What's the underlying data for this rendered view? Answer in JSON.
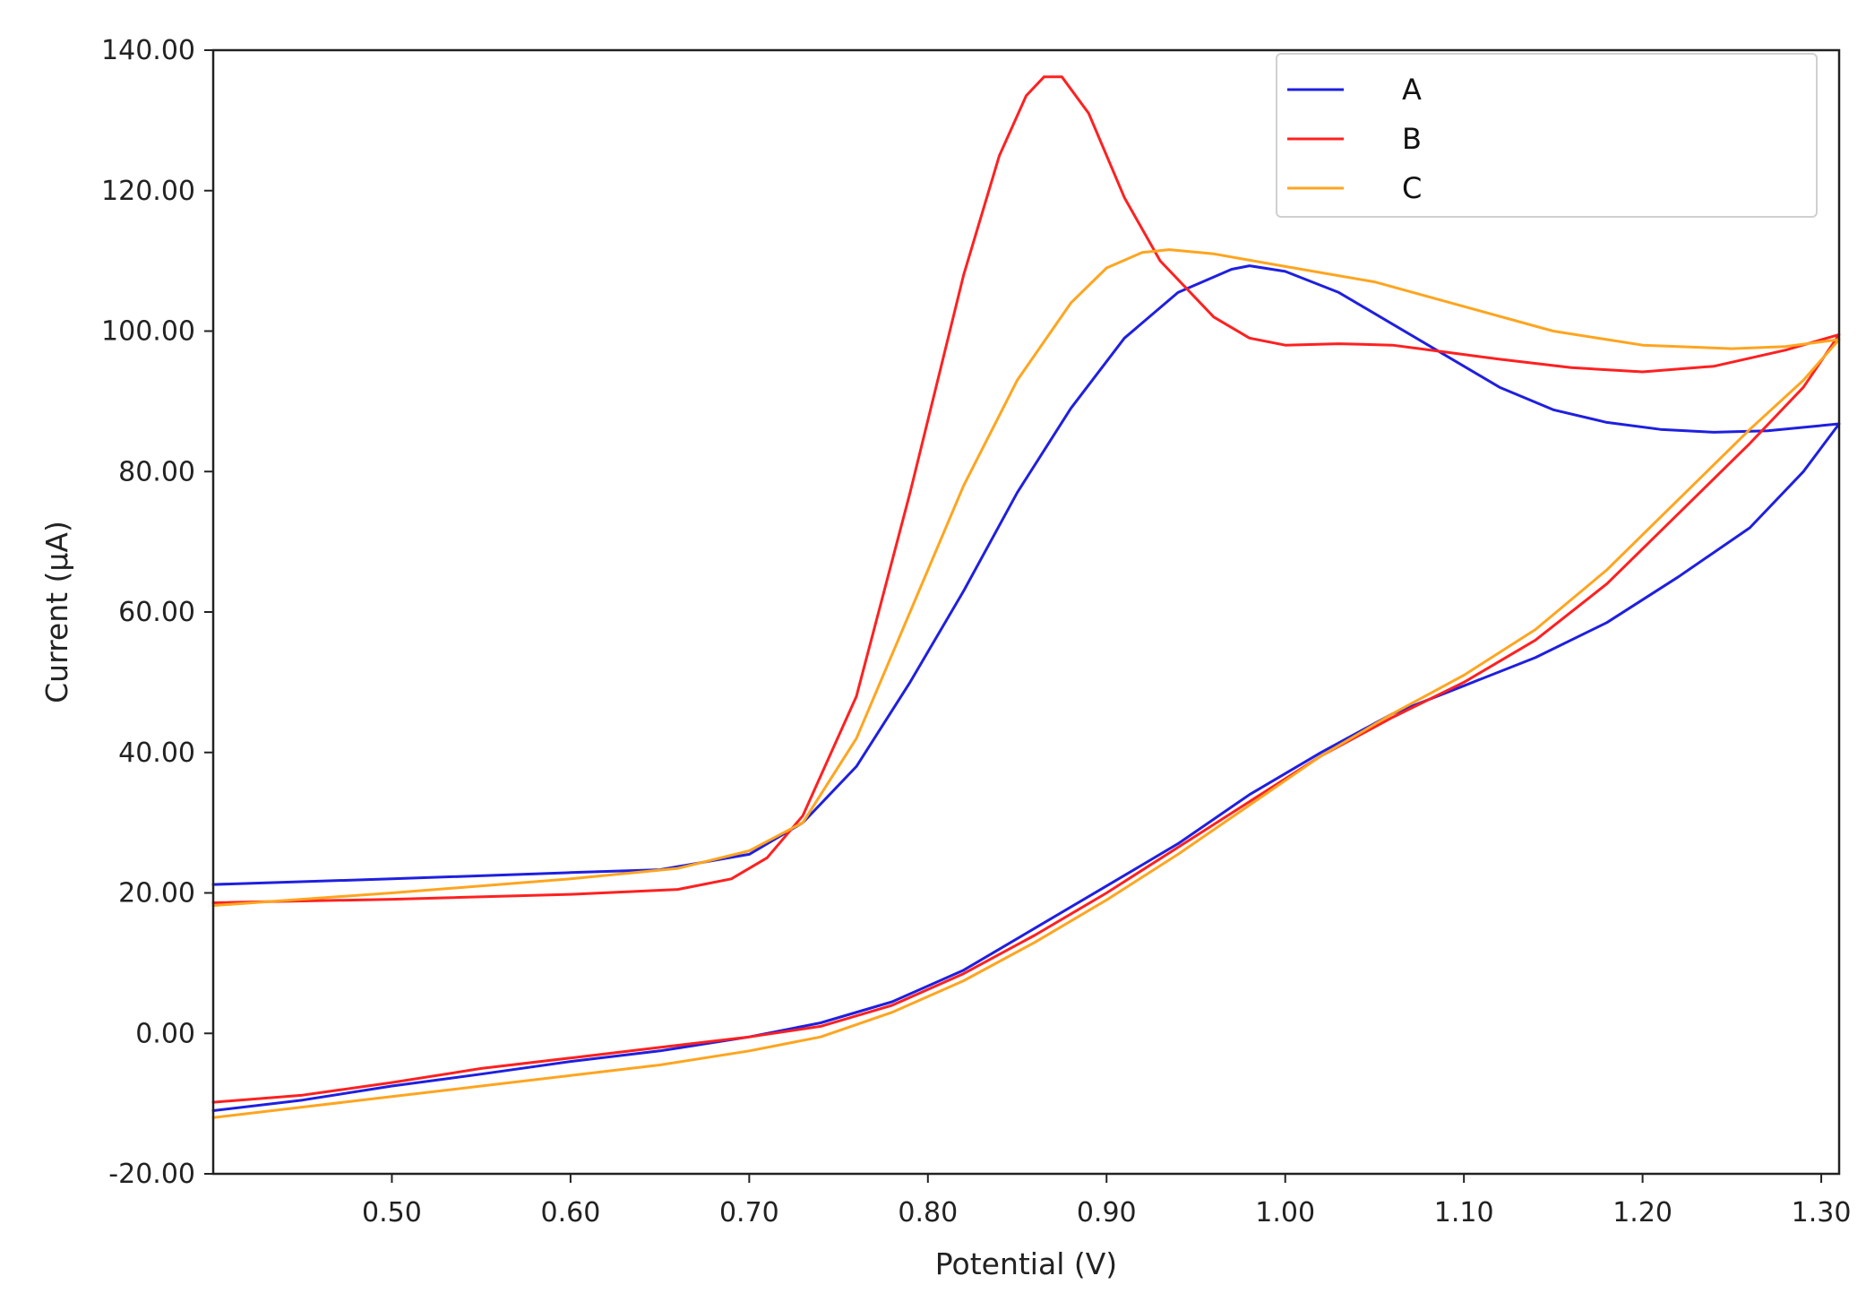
{
  "chart_data": {
    "type": "line",
    "title": "",
    "xlabel": "Potential (V)",
    "ylabel": "Current (µA)",
    "xlim": [
      0.4,
      1.31
    ],
    "ylim": [
      -20,
      140
    ],
    "xticks": [
      0.5,
      0.6,
      0.7,
      0.8,
      0.9,
      1.0,
      1.1,
      1.2,
      1.3
    ],
    "xtick_labels": [
      "0.50",
      "0.60",
      "0.70",
      "0.80",
      "0.90",
      "1.00",
      "1.10",
      "1.20",
      "1.30"
    ],
    "yticks": [
      -20,
      0,
      20,
      40,
      60,
      80,
      100,
      120,
      140
    ],
    "ytick_labels": [
      "-20.00",
      "0.00",
      "20.00",
      "40.00",
      "60.00",
      "80.00",
      "100.00",
      "120.00",
      "140.00"
    ],
    "grid": false,
    "legend_position": "top-right",
    "series": [
      {
        "name": "A",
        "color": "#1f1fe0",
        "points": [
          [
            0.4,
            21.2
          ],
          [
            0.5,
            22.0
          ],
          [
            0.6,
            22.9
          ],
          [
            0.65,
            23.3
          ],
          [
            0.7,
            25.5
          ],
          [
            0.73,
            30.0
          ],
          [
            0.76,
            38.0
          ],
          [
            0.79,
            50.0
          ],
          [
            0.82,
            63.0
          ],
          [
            0.85,
            77.0
          ],
          [
            0.88,
            89.0
          ],
          [
            0.91,
            99.0
          ],
          [
            0.94,
            105.5
          ],
          [
            0.97,
            108.8
          ],
          [
            0.98,
            109.3
          ],
          [
            1.0,
            108.5
          ],
          [
            1.03,
            105.5
          ],
          [
            1.06,
            101.0
          ],
          [
            1.09,
            96.5
          ],
          [
            1.12,
            92.0
          ],
          [
            1.15,
            88.8
          ],
          [
            1.18,
            87.0
          ],
          [
            1.21,
            86.0
          ],
          [
            1.24,
            85.6
          ],
          [
            1.27,
            85.8
          ],
          [
            1.31,
            86.8
          ],
          [
            1.29,
            80.0
          ],
          [
            1.26,
            72.0
          ],
          [
            1.22,
            65.0
          ],
          [
            1.18,
            58.5
          ],
          [
            1.14,
            53.5
          ],
          [
            1.1,
            49.5
          ],
          [
            1.06,
            45.5
          ],
          [
            1.02,
            40.0
          ],
          [
            0.98,
            34.0
          ],
          [
            0.94,
            27.0
          ],
          [
            0.9,
            21.0
          ],
          [
            0.86,
            15.0
          ],
          [
            0.82,
            9.0
          ],
          [
            0.78,
            4.5
          ],
          [
            0.74,
            1.5
          ],
          [
            0.7,
            -0.5
          ],
          [
            0.65,
            -2.5
          ],
          [
            0.6,
            -4.0
          ],
          [
            0.55,
            -5.8
          ],
          [
            0.5,
            -7.5
          ],
          [
            0.45,
            -9.5
          ],
          [
            0.4,
            -11.0
          ]
        ]
      },
      {
        "name": "B",
        "color": "#ff2020",
        "points": [
          [
            0.4,
            18.6
          ],
          [
            0.5,
            19.1
          ],
          [
            0.6,
            19.8
          ],
          [
            0.66,
            20.5
          ],
          [
            0.69,
            22.0
          ],
          [
            0.71,
            25.0
          ],
          [
            0.73,
            31.0
          ],
          [
            0.76,
            48.0
          ],
          [
            0.79,
            77.0
          ],
          [
            0.82,
            108.0
          ],
          [
            0.84,
            125.0
          ],
          [
            0.855,
            133.5
          ],
          [
            0.865,
            136.2
          ],
          [
            0.875,
            136.2
          ],
          [
            0.89,
            131.0
          ],
          [
            0.91,
            119.0
          ],
          [
            0.93,
            110.0
          ],
          [
            0.96,
            102.0
          ],
          [
            0.98,
            99.0
          ],
          [
            1.0,
            98.0
          ],
          [
            1.03,
            98.2
          ],
          [
            1.06,
            98.0
          ],
          [
            1.09,
            97.0
          ],
          [
            1.12,
            96.0
          ],
          [
            1.16,
            94.8
          ],
          [
            1.2,
            94.2
          ],
          [
            1.24,
            95.0
          ],
          [
            1.28,
            97.3
          ],
          [
            1.31,
            99.5
          ],
          [
            1.29,
            92.0
          ],
          [
            1.26,
            84.0
          ],
          [
            1.22,
            74.0
          ],
          [
            1.18,
            64.0
          ],
          [
            1.14,
            56.0
          ],
          [
            1.1,
            50.0
          ],
          [
            1.06,
            45.0
          ],
          [
            1.02,
            39.5
          ],
          [
            0.98,
            33.0
          ],
          [
            0.94,
            26.5
          ],
          [
            0.9,
            20.0
          ],
          [
            0.86,
            14.0
          ],
          [
            0.82,
            8.5
          ],
          [
            0.78,
            4.0
          ],
          [
            0.74,
            1.0
          ],
          [
            0.7,
            -0.5
          ],
          [
            0.65,
            -2.0
          ],
          [
            0.6,
            -3.5
          ],
          [
            0.55,
            -5.0
          ],
          [
            0.5,
            -7.0
          ],
          [
            0.45,
            -8.8
          ],
          [
            0.4,
            -9.8
          ]
        ]
      },
      {
        "name": "C",
        "color": "#ffa51f",
        "points": [
          [
            0.4,
            18.2
          ],
          [
            0.5,
            20.0
          ],
          [
            0.6,
            22.0
          ],
          [
            0.66,
            23.5
          ],
          [
            0.7,
            26.0
          ],
          [
            0.73,
            30.0
          ],
          [
            0.76,
            42.0
          ],
          [
            0.79,
            60.0
          ],
          [
            0.82,
            78.0
          ],
          [
            0.85,
            93.0
          ],
          [
            0.88,
            104.0
          ],
          [
            0.9,
            109.0
          ],
          [
            0.92,
            111.2
          ],
          [
            0.935,
            111.6
          ],
          [
            0.96,
            111.0
          ],
          [
            1.0,
            109.2
          ],
          [
            1.05,
            107.0
          ],
          [
            1.1,
            103.5
          ],
          [
            1.15,
            100.0
          ],
          [
            1.2,
            98.0
          ],
          [
            1.25,
            97.5
          ],
          [
            1.28,
            97.8
          ],
          [
            1.31,
            98.8
          ],
          [
            1.29,
            93.0
          ],
          [
            1.26,
            86.0
          ],
          [
            1.22,
            76.0
          ],
          [
            1.18,
            66.0
          ],
          [
            1.14,
            57.5
          ],
          [
            1.1,
            51.0
          ],
          [
            1.06,
            45.5
          ],
          [
            1.02,
            39.5
          ],
          [
            0.98,
            32.5
          ],
          [
            0.94,
            25.5
          ],
          [
            0.9,
            19.0
          ],
          [
            0.86,
            13.0
          ],
          [
            0.82,
            7.5
          ],
          [
            0.78,
            3.0
          ],
          [
            0.74,
            -0.5
          ],
          [
            0.7,
            -2.5
          ],
          [
            0.65,
            -4.5
          ],
          [
            0.6,
            -6.0
          ],
          [
            0.55,
            -7.5
          ],
          [
            0.5,
            -9.0
          ],
          [
            0.45,
            -10.5
          ],
          [
            0.4,
            -12.0
          ]
        ]
      }
    ]
  }
}
